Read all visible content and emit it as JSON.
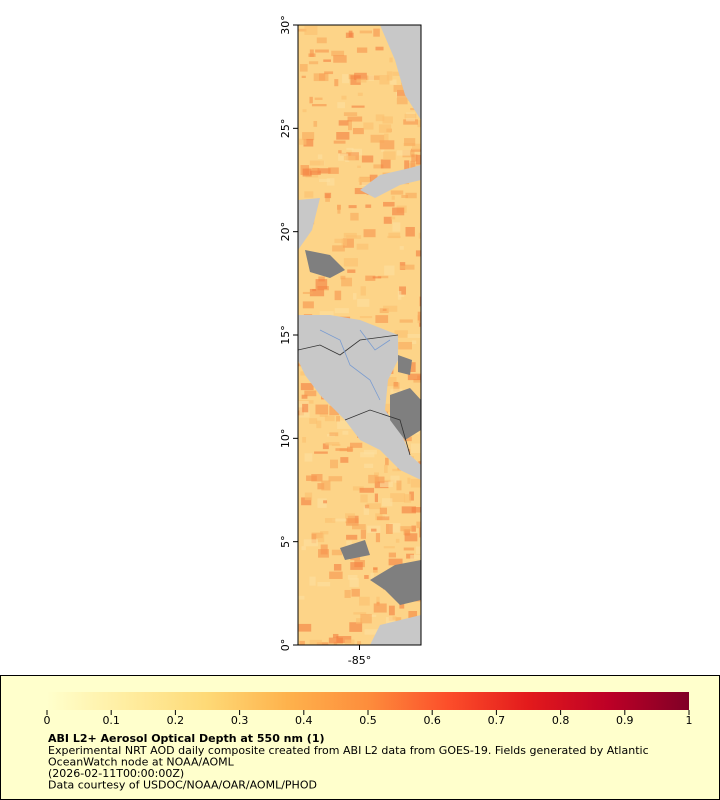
{
  "chart_data": {
    "type": "map",
    "xlim": [
      -88,
      -82
    ],
    "ylim": [
      0,
      30
    ],
    "xticks": [
      {
        "value": -85,
        "label": "-85°"
      }
    ],
    "yticks": [
      {
        "value": 0,
        "label": "0°"
      },
      {
        "value": 5,
        "label": "5°"
      },
      {
        "value": 10,
        "label": "10°"
      },
      {
        "value": 15,
        "label": "15°"
      },
      {
        "value": 20,
        "label": "20°"
      },
      {
        "value": 25,
        "label": "25°"
      },
      {
        "value": 30,
        "label": "30°"
      }
    ],
    "colorbar": {
      "lim": [
        0,
        1
      ],
      "ticks": [
        0,
        0.1,
        0.2,
        0.3,
        0.4,
        0.5,
        0.6,
        0.7,
        0.8,
        0.9,
        1
      ],
      "colors": [
        "#ffffcc",
        "#ffeda0",
        "#fed976",
        "#feb24c",
        "#fd8d3c",
        "#fc4e2a",
        "#e31a1c",
        "#bd0026",
        "#800026"
      ]
    },
    "legend_title": "ABI L2+ Aerosol Optical Depth at 550 nm (1)",
    "legend_lines": [
      "Experimental NRT AOD daily composite created from ABI L2 data from GOES-19. Fields generated by Atlantic",
      "OceanWatch node at NOAA/AOML",
      "(2026-02-11T00:00:00Z)",
      "Data courtesy of USDOC/NOAA/OAR/AOML/PHOD"
    ]
  }
}
